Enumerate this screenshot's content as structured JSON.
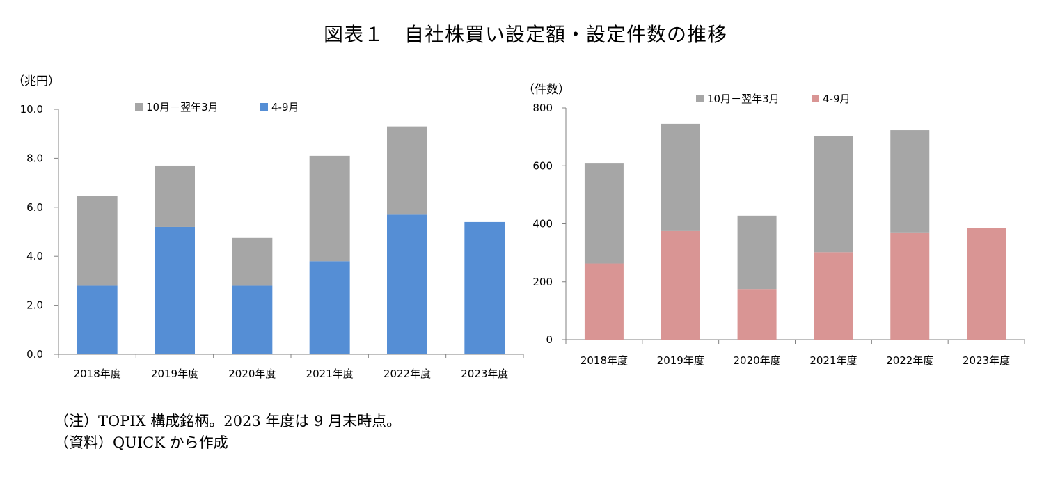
{
  "title": "図表１　自社株買い設定額・設定件数の推移",
  "legend_labels": [
    "10月－翌年3月",
    "4-9月"
  ],
  "notes": [
    "（注）TOPIX 構成銘柄。2023 年度は 9 月末時点。",
    "（資料）QUICK から作成"
  ],
  "colors": {
    "gray": "#a6a6a6",
    "blue": "#558ed5",
    "pink": "#d99594",
    "axis": "#808080"
  },
  "chart_data": [
    {
      "type": "bar",
      "stacked": true,
      "unit": "（兆円）",
      "categories": [
        "2018年度",
        "2019年度",
        "2020年度",
        "2021年度",
        "2022年度",
        "2023年度"
      ],
      "ylim": [
        0,
        10
      ],
      "yticks": [
        "0.0",
        "2.0",
        "4.0",
        "6.0",
        "8.0",
        "10.0"
      ],
      "legend_position": "top",
      "series": [
        {
          "name": "4-9月",
          "color": "#558ed5",
          "values": [
            2.8,
            5.2,
            2.8,
            3.8,
            5.7,
            5.4
          ]
        },
        {
          "name": "10月－翌年3月",
          "color": "#a6a6a6",
          "values": [
            3.65,
            2.5,
            1.95,
            4.3,
            3.6,
            0
          ]
        }
      ]
    },
    {
      "type": "bar",
      "stacked": true,
      "unit": "（件数）",
      "categories": [
        "2018年度",
        "2019年度",
        "2020年度",
        "2021年度",
        "2022年度",
        "2023年度"
      ],
      "ylim": [
        0,
        800
      ],
      "yticks": [
        "0",
        "200",
        "400",
        "600",
        "800"
      ],
      "legend_position": "top",
      "series": [
        {
          "name": "4-9月",
          "color": "#d99594",
          "values": [
            263,
            375,
            175,
            302,
            368,
            385
          ]
        },
        {
          "name": "10月－翌年3月",
          "color": "#a6a6a6",
          "values": [
            347,
            370,
            253,
            400,
            355,
            0
          ]
        }
      ]
    }
  ]
}
